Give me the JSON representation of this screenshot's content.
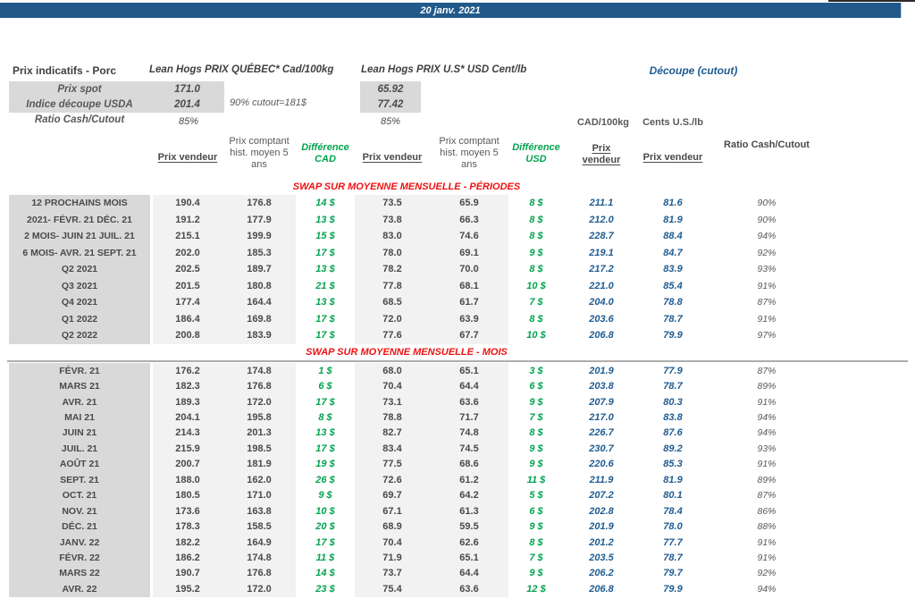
{
  "colors": {
    "banner_blue": "#20598a",
    "text_blue": "#1f5c92",
    "green": "#00a44f",
    "red": "#ee1111",
    "label_gray_bg": "#d9d9d9",
    "band_gray_bg": "#f2f2f2"
  },
  "top_bar": {
    "date": "20 janv. 2021"
  },
  "summary": {
    "title": "Prix indicatifs - Porc",
    "quebec_title": "Lean Hogs PRIX QUÉBEC* Cad/100kg",
    "us_title": "Lean Hogs PRIX U.S* USD Cent/lb",
    "cutout_title": "Découpe (cutout)",
    "spot_label": "Prix spot",
    "spot_cad": "171.0",
    "spot_usd": "65.92",
    "usda_label": "Indice découpe USDA",
    "usda_cad": "201.4",
    "usda_usd": "77.42",
    "cutout_note": "90% cutout=181$",
    "ratio_label": "Ratio Cash/Cutout",
    "ratio_cad": "85%",
    "ratio_usd": "85%"
  },
  "columns": {
    "prix_vendeur": "Prix vendeur",
    "prix_comptant": "Prix comptant hist. moyen 5 ans",
    "difference_cad": "Différence CAD",
    "difference_usd": "Différence USD",
    "cad_unit": "CAD/100kg",
    "us_unit": "Cents U.S./lb",
    "ratio_header": "Ratio Cash/Cutout"
  },
  "sections": [
    {
      "title": "SWAP SUR MOYENNE MENSUELLE - PÉRIODES",
      "rows": [
        {
          "label": "12 PROCHAINS MOIS",
          "cad_v": "190.4",
          "cad_h": "176.8",
          "d_cad": "14 $",
          "usd_v": "73.5",
          "usd_h": "65.9",
          "d_usd": "8 $",
          "co_cad": "211.1",
          "co_usd": "81.6",
          "ratio": "90%"
        },
        {
          "label": "2021- FÉVR. 21 DÉC. 21",
          "cad_v": "191.2",
          "cad_h": "177.9",
          "d_cad": "13 $",
          "usd_v": "73.8",
          "usd_h": "66.3",
          "d_usd": "8 $",
          "co_cad": "212.0",
          "co_usd": "81.9",
          "ratio": "90%"
        },
        {
          "label": "2 MOIS- JUIN 21 JUIL. 21",
          "cad_v": "215.1",
          "cad_h": "199.9",
          "d_cad": "15 $",
          "usd_v": "83.0",
          "usd_h": "74.6",
          "d_usd": "8 $",
          "co_cad": "228.7",
          "co_usd": "88.4",
          "ratio": "94%"
        },
        {
          "label": "6 MOIS- AVR. 21 SEPT. 21",
          "cad_v": "202.0",
          "cad_h": "185.3",
          "d_cad": "17 $",
          "usd_v": "78.0",
          "usd_h": "69.1",
          "d_usd": "9 $",
          "co_cad": "219.1",
          "co_usd": "84.7",
          "ratio": "92%"
        },
        {
          "label": "Q2 2021",
          "cad_v": "202.5",
          "cad_h": "189.7",
          "d_cad": "13 $",
          "usd_v": "78.2",
          "usd_h": "70.0",
          "d_usd": "8 $",
          "co_cad": "217.2",
          "co_usd": "83.9",
          "ratio": "93%"
        },
        {
          "label": "Q3 2021",
          "cad_v": "201.5",
          "cad_h": "180.8",
          "d_cad": "21 $",
          "usd_v": "77.8",
          "usd_h": "68.1",
          "d_usd": "10 $",
          "co_cad": "221.0",
          "co_usd": "85.4",
          "ratio": "91%"
        },
        {
          "label": "Q4 2021",
          "cad_v": "177.4",
          "cad_h": "164.4",
          "d_cad": "13 $",
          "usd_v": "68.5",
          "usd_h": "61.7",
          "d_usd": "7 $",
          "co_cad": "204.0",
          "co_usd": "78.8",
          "ratio": "87%"
        },
        {
          "label": "Q1 2022",
          "cad_v": "186.4",
          "cad_h": "169.8",
          "d_cad": "17 $",
          "usd_v": "72.0",
          "usd_h": "63.9",
          "d_usd": "8 $",
          "co_cad": "203.6",
          "co_usd": "78.7",
          "ratio": "91%"
        },
        {
          "label": "Q2 2022",
          "cad_v": "200.8",
          "cad_h": "183.9",
          "d_cad": "17 $",
          "usd_v": "77.6",
          "usd_h": "67.7",
          "d_usd": "10 $",
          "co_cad": "206.8",
          "co_usd": "79.9",
          "ratio": "97%"
        }
      ]
    },
    {
      "title": "SWAP SUR MOYENNE MENSUELLE - MOIS",
      "rows": [
        {
          "label": "FÉVR. 21",
          "cad_v": "176.2",
          "cad_h": "174.8",
          "d_cad": "1 $",
          "usd_v": "68.0",
          "usd_h": "65.1",
          "d_usd": "3 $",
          "co_cad": "201.9",
          "co_usd": "77.9",
          "ratio": "87%"
        },
        {
          "label": "MARS 21",
          "cad_v": "182.3",
          "cad_h": "176.8",
          "d_cad": "6 $",
          "usd_v": "70.4",
          "usd_h": "64.4",
          "d_usd": "6 $",
          "co_cad": "203.8",
          "co_usd": "78.7",
          "ratio": "89%"
        },
        {
          "label": "AVR. 21",
          "cad_v": "189.3",
          "cad_h": "172.0",
          "d_cad": "17 $",
          "usd_v": "73.1",
          "usd_h": "63.6",
          "d_usd": "9 $",
          "co_cad": "207.9",
          "co_usd": "80.3",
          "ratio": "91%"
        },
        {
          "label": "MAI 21",
          "cad_v": "204.1",
          "cad_h": "195.8",
          "d_cad": "8 $",
          "usd_v": "78.8",
          "usd_h": "71.7",
          "d_usd": "7 $",
          "co_cad": "217.0",
          "co_usd": "83.8",
          "ratio": "94%"
        },
        {
          "label": "JUIN 21",
          "cad_v": "214.3",
          "cad_h": "201.3",
          "d_cad": "13 $",
          "usd_v": "82.7",
          "usd_h": "74.8",
          "d_usd": "8 $",
          "co_cad": "226.7",
          "co_usd": "87.6",
          "ratio": "94%"
        },
        {
          "label": "JUIL. 21",
          "cad_v": "215.9",
          "cad_h": "198.5",
          "d_cad": "17 $",
          "usd_v": "83.4",
          "usd_h": "74.5",
          "d_usd": "9 $",
          "co_cad": "230.7",
          "co_usd": "89.2",
          "ratio": "93%"
        },
        {
          "label": "AOÛT 21",
          "cad_v": "200.7",
          "cad_h": "181.9",
          "d_cad": "19 $",
          "usd_v": "77.5",
          "usd_h": "68.6",
          "d_usd": "9 $",
          "co_cad": "220.6",
          "co_usd": "85.3",
          "ratio": "91%"
        },
        {
          "label": "SEPT. 21",
          "cad_v": "188.0",
          "cad_h": "162.0",
          "d_cad": "26 $",
          "usd_v": "72.6",
          "usd_h": "61.2",
          "d_usd": "11 $",
          "co_cad": "211.9",
          "co_usd": "81.9",
          "ratio": "89%"
        },
        {
          "label": "OCT. 21",
          "cad_v": "180.5",
          "cad_h": "171.0",
          "d_cad": "9 $",
          "usd_v": "69.7",
          "usd_h": "64.2",
          "d_usd": "5 $",
          "co_cad": "207.2",
          "co_usd": "80.1",
          "ratio": "87%"
        },
        {
          "label": "NOV. 21",
          "cad_v": "173.6",
          "cad_h": "163.8",
          "d_cad": "10 $",
          "usd_v": "67.1",
          "usd_h": "61.3",
          "d_usd": "6 $",
          "co_cad": "202.8",
          "co_usd": "78.4",
          "ratio": "86%"
        },
        {
          "label": "DÉC. 21",
          "cad_v": "178.3",
          "cad_h": "158.5",
          "d_cad": "20 $",
          "usd_v": "68.9",
          "usd_h": "59.5",
          "d_usd": "9 $",
          "co_cad": "201.9",
          "co_usd": "78.0",
          "ratio": "88%"
        },
        {
          "label": "JANV. 22",
          "cad_v": "182.2",
          "cad_h": "164.9",
          "d_cad": "17 $",
          "usd_v": "70.4",
          "usd_h": "62.6",
          "d_usd": "8 $",
          "co_cad": "201.2",
          "co_usd": "77.7",
          "ratio": "91%"
        },
        {
          "label": "FÉVR. 22",
          "cad_v": "186.2",
          "cad_h": "174.8",
          "d_cad": "11 $",
          "usd_v": "71.9",
          "usd_h": "65.1",
          "d_usd": "7 $",
          "co_cad": "203.5",
          "co_usd": "78.7",
          "ratio": "91%"
        },
        {
          "label": "MARS 22",
          "cad_v": "190.7",
          "cad_h": "176.8",
          "d_cad": "14 $",
          "usd_v": "73.7",
          "usd_h": "64.4",
          "d_usd": "9 $",
          "co_cad": "206.2",
          "co_usd": "79.7",
          "ratio": "92%"
        },
        {
          "label": "AVR. 22",
          "cad_v": "195.2",
          "cad_h": "172.0",
          "d_cad": "23 $",
          "usd_v": "75.4",
          "usd_h": "63.6",
          "d_usd": "12 $",
          "co_cad": "206.8",
          "co_usd": "79.9",
          "ratio": "94%"
        }
      ]
    }
  ]
}
